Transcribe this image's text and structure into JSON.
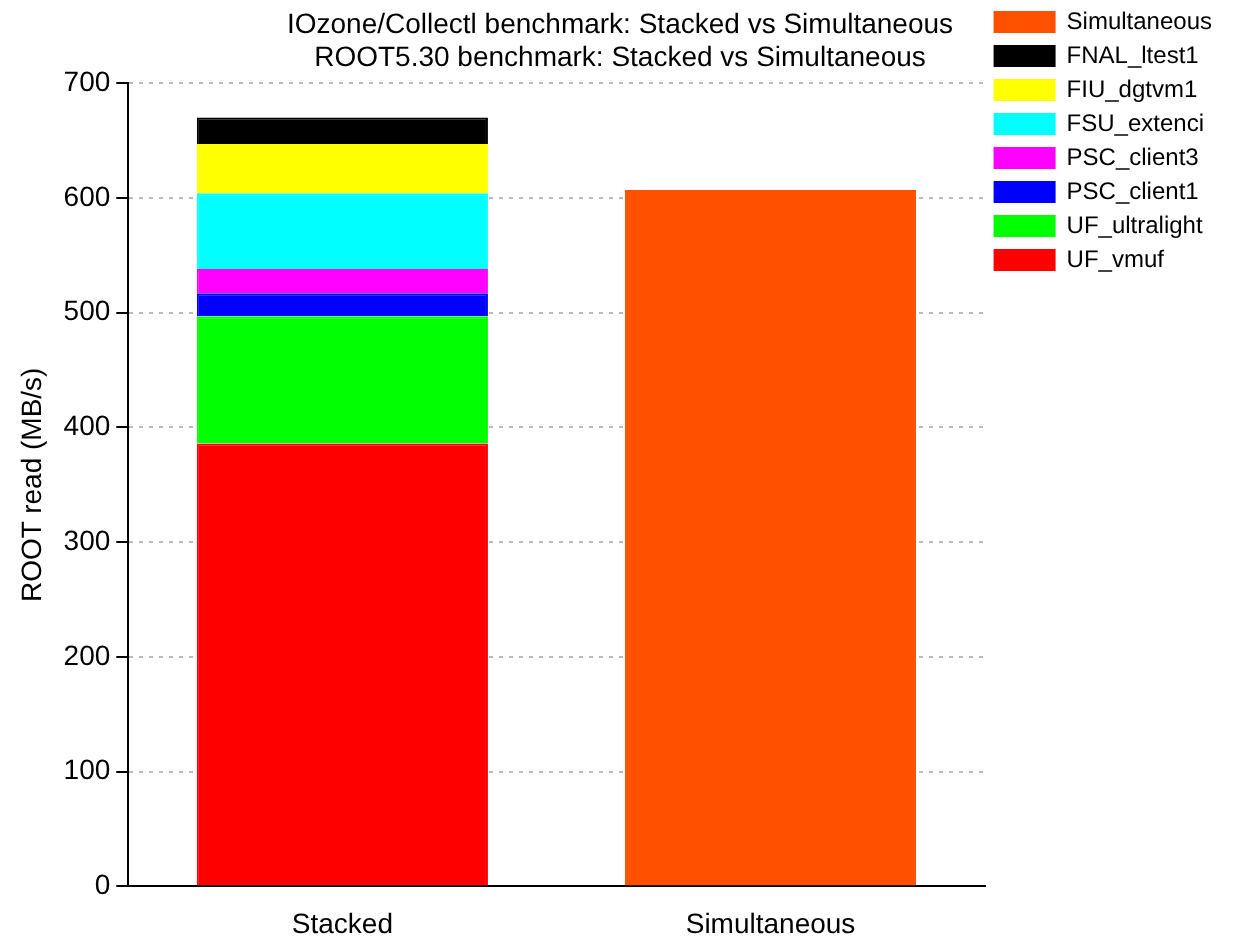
{
  "chart_data": {
    "type": "bar",
    "title": "IOzone/Collectl benchmark: Stacked vs Simultaneous",
    "subtitle": "ROOT5.30 benchmark: Stacked vs Simultaneous",
    "ylabel": "ROOT read (MB/s)",
    "categories": [
      "Stacked",
      "Simultaneous"
    ],
    "stacked": true,
    "series": [
      {
        "name": "UF_vmuf",
        "color": "#ff0000",
        "values": [
          386,
          null
        ]
      },
      {
        "name": "UF_ultralight",
        "color": "#00ff00",
        "values": [
          111,
          null
        ]
      },
      {
        "name": "PSC_client1",
        "color": "#0000ff",
        "values": [
          20,
          null
        ]
      },
      {
        "name": "PSC_client3",
        "color": "#ff00ff",
        "values": [
          21,
          null
        ]
      },
      {
        "name": "FSU_extenci",
        "color": "#00ffff",
        "values": [
          66,
          null
        ]
      },
      {
        "name": "FIU_dgtvm1",
        "color": "#ffff00",
        "values": [
          43,
          null
        ]
      },
      {
        "name": "FNAL_ltest1",
        "color": "#000000",
        "values": [
          23,
          null
        ]
      },
      {
        "name": "Simultaneous",
        "color": "#ff5000",
        "values": [
          null,
          607
        ]
      }
    ],
    "ylim": [
      0,
      700
    ],
    "yticks": [
      0,
      100,
      200,
      300,
      400,
      500,
      600,
      700
    ],
    "grid": "y",
    "legend": "top right"
  }
}
